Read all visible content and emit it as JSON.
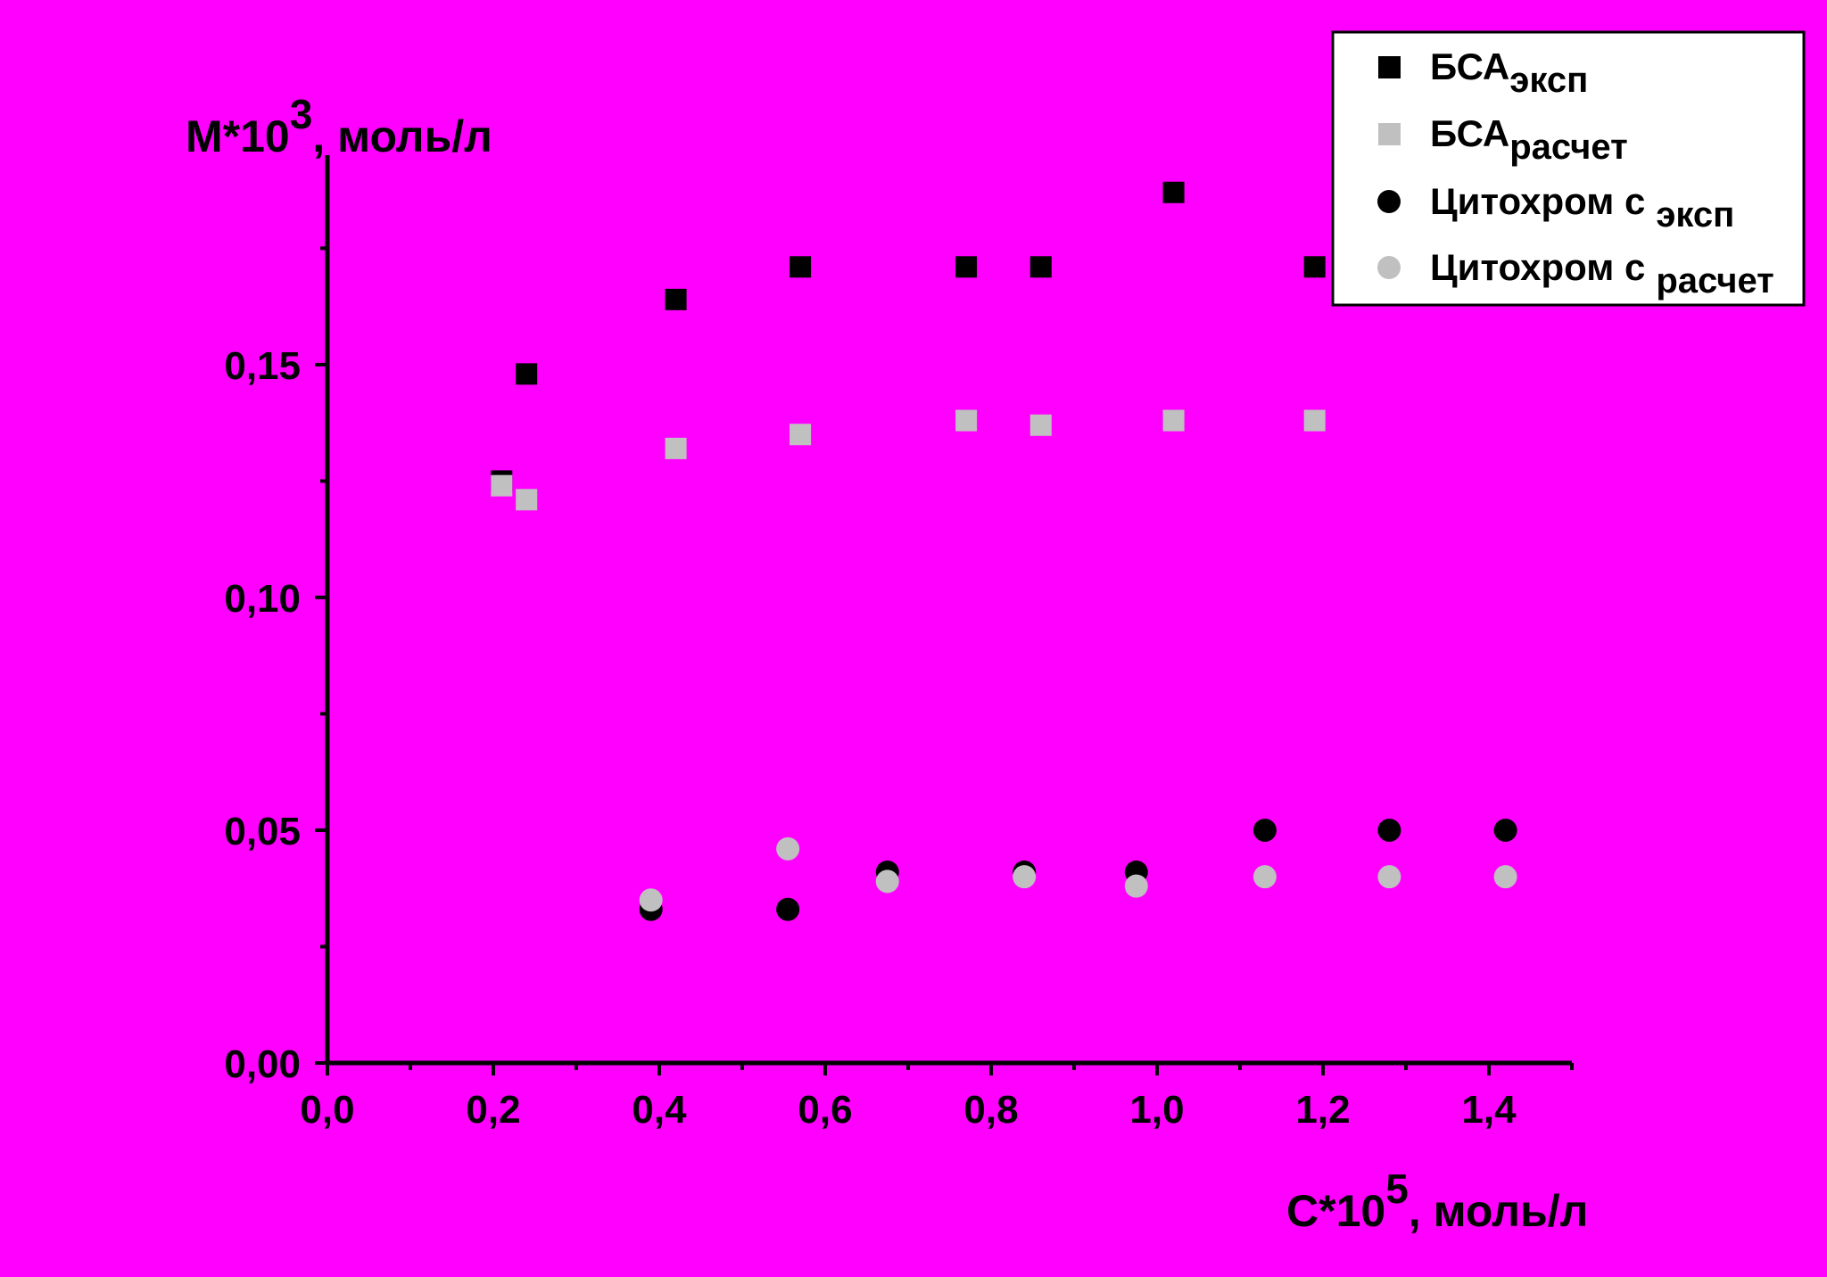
{
  "colors": {
    "background": "#ff00ff",
    "axis": "#000000",
    "exp_marker": "#000000",
    "calc_marker": "#c0c0c0",
    "legend_bg": "#ffffff"
  },
  "chart_data": {
    "type": "scatter",
    "title": "",
    "ylabel": {
      "base": "M*10",
      "sup": "3",
      "rest": ", моль/л"
    },
    "xlabel": {
      "base": "C*10",
      "sup": "5",
      "rest": ", моль/л"
    },
    "xlim": [
      0,
      1.5
    ],
    "ylim": [
      0,
      0.195
    ],
    "xticks": [
      {
        "value": 0.0,
        "label": "0,0"
      },
      {
        "value": 0.2,
        "label": "0,2"
      },
      {
        "value": 0.4,
        "label": "0,4"
      },
      {
        "value": 0.6,
        "label": "0,6"
      },
      {
        "value": 0.8,
        "label": "0,8"
      },
      {
        "value": 1.0,
        "label": "1,0"
      },
      {
        "value": 1.2,
        "label": "1,2"
      },
      {
        "value": 1.4,
        "label": "1,4"
      }
    ],
    "xminor": [
      0.1,
      0.3,
      0.5,
      0.7,
      0.9,
      1.1,
      1.3,
      1.5
    ],
    "yticks": [
      {
        "value": 0.0,
        "label": "0,00"
      },
      {
        "value": 0.05,
        "label": "0,05"
      },
      {
        "value": 0.1,
        "label": "0,10"
      },
      {
        "value": 0.15,
        "label": "0,15"
      }
    ],
    "yminor": [
      0.025,
      0.075,
      0.125,
      0.175
    ],
    "legend_placement": "top-right",
    "series": [
      {
        "name": "БСА",
        "sub": "эксп",
        "marker": "square",
        "color": "#000000",
        "points": [
          [
            0.21,
            0.125
          ],
          [
            0.24,
            0.148
          ],
          [
            0.42,
            0.164
          ],
          [
            0.57,
            0.171
          ],
          [
            0.77,
            0.171
          ],
          [
            0.86,
            0.171
          ],
          [
            1.02,
            0.187
          ],
          [
            1.19,
            0.171
          ]
        ]
      },
      {
        "name": "БСА",
        "sub": "расчет",
        "marker": "square",
        "color": "#c0c0c0",
        "points": [
          [
            0.21,
            0.124
          ],
          [
            0.24,
            0.121
          ],
          [
            0.42,
            0.132
          ],
          [
            0.57,
            0.135
          ],
          [
            0.77,
            0.138
          ],
          [
            0.86,
            0.137
          ],
          [
            1.02,
            0.138
          ],
          [
            1.19,
            0.138
          ]
        ]
      },
      {
        "name": "Цитохром c",
        "sub": "эксп",
        "marker": "circle",
        "color": "#000000",
        "points": [
          [
            0.39,
            0.033
          ],
          [
            0.555,
            0.033
          ],
          [
            0.675,
            0.041
          ],
          [
            0.84,
            0.041
          ],
          [
            0.975,
            0.041
          ],
          [
            1.13,
            0.05
          ],
          [
            1.28,
            0.05
          ],
          [
            1.42,
            0.05
          ]
        ]
      },
      {
        "name": "Цитохром c",
        "sub": "расчет",
        "marker": "circle",
        "color": "#c0c0c0",
        "points": [
          [
            0.39,
            0.035
          ],
          [
            0.555,
            0.046
          ],
          [
            0.675,
            0.039
          ],
          [
            0.84,
            0.04
          ],
          [
            0.975,
            0.038
          ],
          [
            1.13,
            0.04
          ],
          [
            1.28,
            0.04
          ],
          [
            1.42,
            0.04
          ]
        ]
      }
    ]
  }
}
